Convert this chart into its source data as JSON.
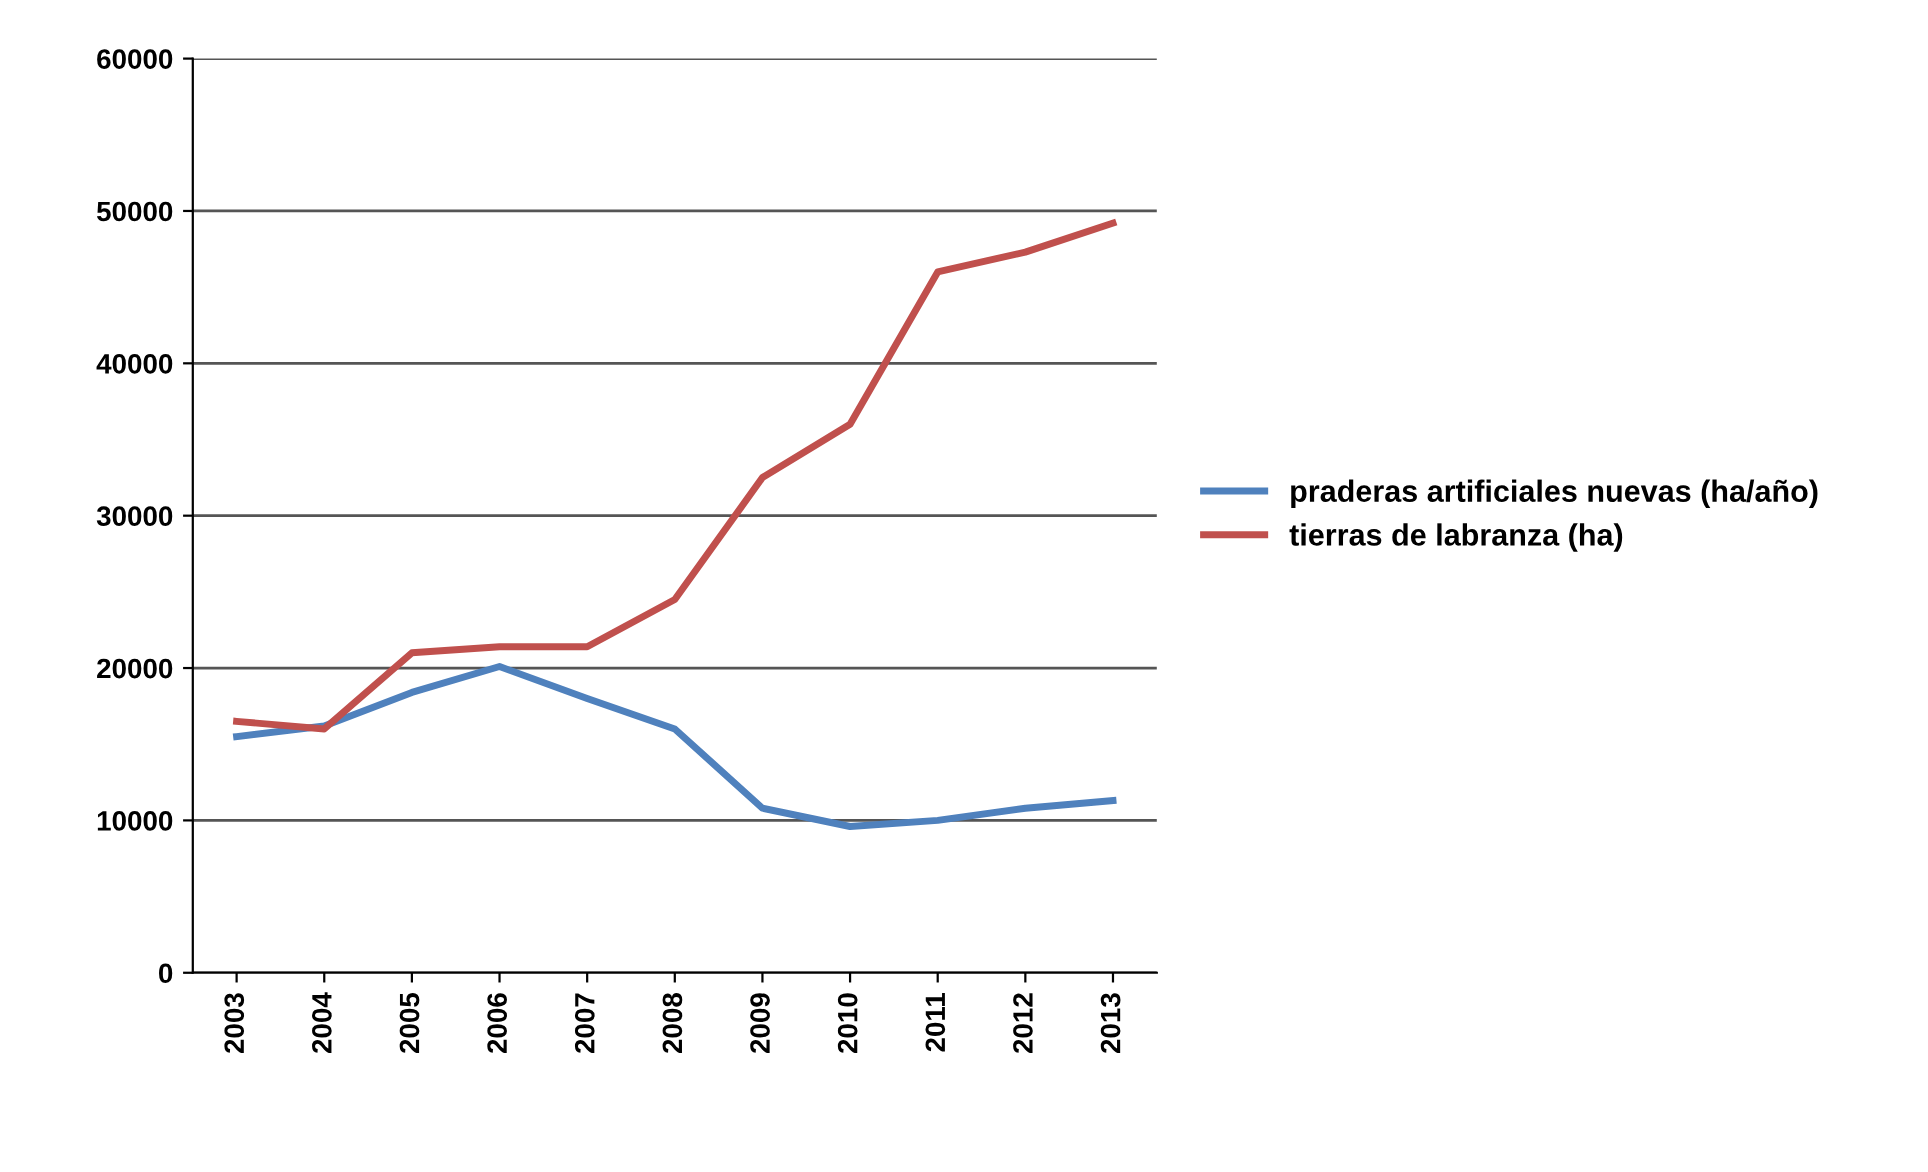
{
  "chart_data": {
    "type": "line",
    "categories": [
      "2003",
      "2004",
      "2005",
      "2006",
      "2007",
      "2008",
      "2009",
      "2010",
      "2011",
      "2012",
      "2013"
    ],
    "series": [
      {
        "name": "praderas artificiales nuevas (ha/año)",
        "color": "#4f81bd",
        "values": [
          15500,
          16200,
          18400,
          20100,
          18000,
          16000,
          10800,
          9600,
          10000,
          10800,
          11300
        ]
      },
      {
        "name": "tierras de labranza (ha)",
        "color": "#c0504d",
        "values": [
          16500,
          16000,
          21000,
          21400,
          21400,
          24500,
          32500,
          36000,
          46000,
          47300,
          49200
        ]
      }
    ],
    "ylim": [
      0,
      60000
    ],
    "yticks": [
      0,
      10000,
      20000,
      30000,
      40000,
      50000,
      60000
    ],
    "grid": "y",
    "legend": "right"
  }
}
